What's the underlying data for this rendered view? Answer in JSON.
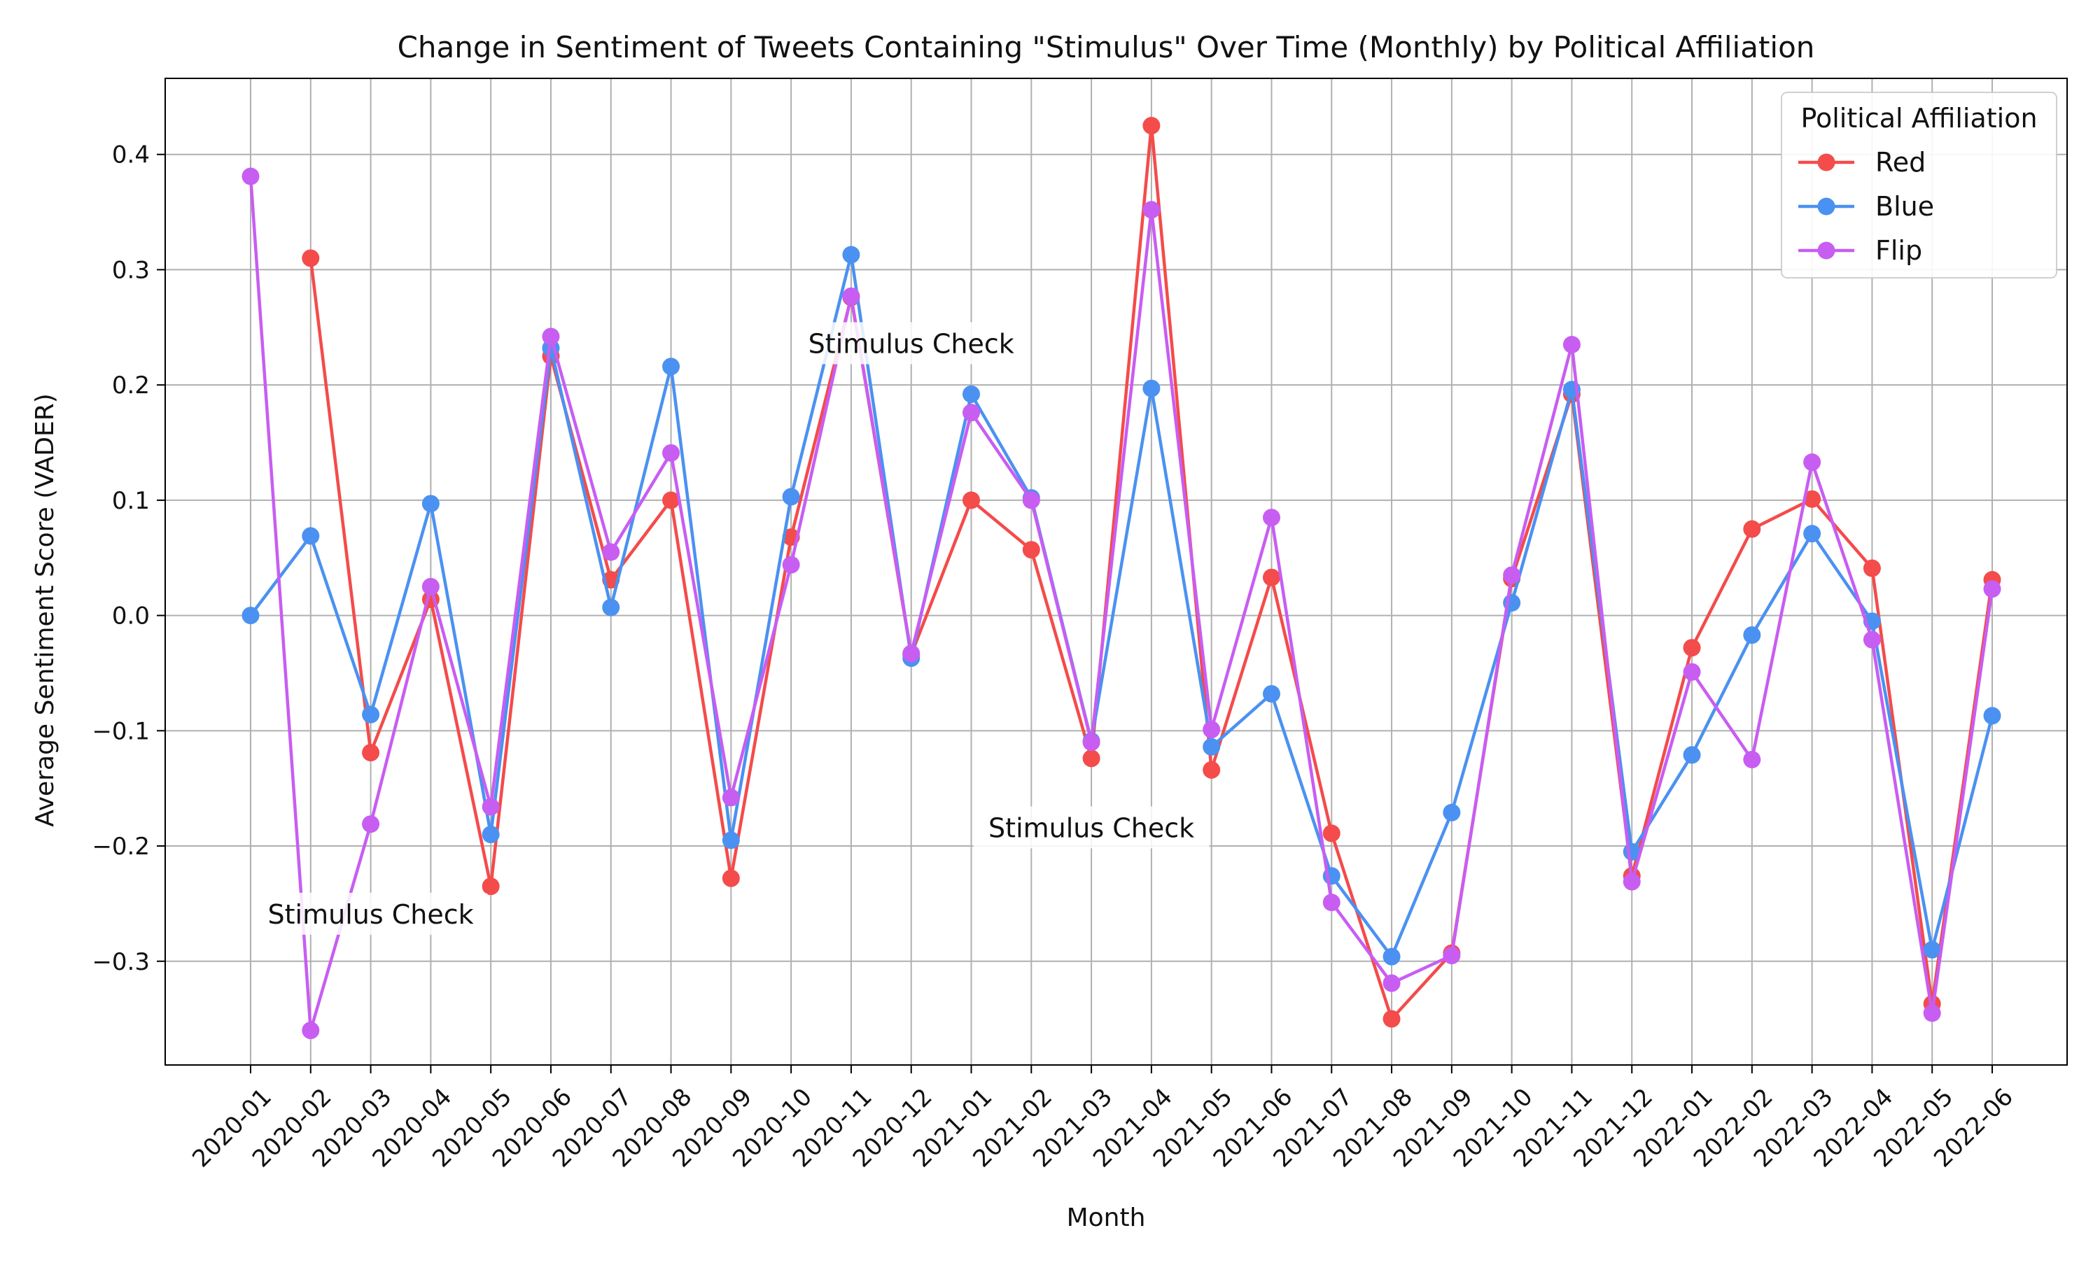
{
  "chart_data": {
    "type": "line",
    "title": "Change in Sentiment of Tweets Containing \"Stimulus\" Over Time (Monthly) by Political Affiliation",
    "xlabel": "Month",
    "ylabel": "Average Sentiment Score (VADER)",
    "x": [
      "2020-01",
      "2020-02",
      "2020-03",
      "2020-04",
      "2020-05",
      "2020-06",
      "2020-07",
      "2020-08",
      "2020-09",
      "2020-10",
      "2020-11",
      "2020-12",
      "2021-01",
      "2021-02",
      "2021-03",
      "2021-04",
      "2021-05",
      "2021-06",
      "2021-07",
      "2021-08",
      "2021-09",
      "2021-10",
      "2021-11",
      "2021-12",
      "2022-01",
      "2022-02",
      "2022-03",
      "2022-04",
      "2022-05",
      "2022-06"
    ],
    "ylim": [
      -0.39,
      0.466
    ],
    "yticks": [
      -0.3,
      -0.2,
      -0.1,
      0.0,
      0.1,
      0.2,
      0.3,
      0.4
    ],
    "ytick_labels": [
      "−0.3",
      "−0.2",
      "−0.1",
      "0.0",
      "0.1",
      "0.2",
      "0.3",
      "0.4"
    ],
    "grid": true,
    "legend": {
      "title": "Political Affiliation",
      "placement": "top-right"
    },
    "series": [
      {
        "name": "Red",
        "color": "#f44b4b",
        "values": [
          null,
          0.31,
          -0.119,
          0.014,
          -0.235,
          0.225,
          0.031,
          0.1,
          -0.228,
          0.068,
          0.276,
          -0.034,
          0.1,
          0.057,
          -0.124,
          0.425,
          -0.134,
          0.033,
          -0.189,
          -0.35,
          -0.293,
          0.032,
          0.192,
          -0.226,
          -0.028,
          0.075,
          0.101,
          0.041,
          -0.337,
          0.031
        ]
      },
      {
        "name": "Blue",
        "color": "#4b91f1",
        "values": [
          0.0,
          0.069,
          -0.086,
          0.097,
          -0.19,
          0.232,
          0.007,
          0.216,
          -0.195,
          0.103,
          0.313,
          -0.037,
          0.192,
          0.102,
          -0.109,
          0.197,
          -0.114,
          -0.068,
          -0.226,
          -0.296,
          -0.171,
          0.011,
          0.196,
          -0.205,
          -0.121,
          -0.017,
          0.071,
          -0.005,
          -0.29,
          -0.087
        ]
      },
      {
        "name": "Flip",
        "color": "#c85df2",
        "values": [
          0.381,
          -0.36,
          -0.181,
          0.025,
          -0.166,
          0.242,
          0.055,
          0.141,
          -0.158,
          0.044,
          0.277,
          -0.033,
          0.176,
          0.1,
          -0.11,
          0.352,
          -0.099,
          0.085,
          -0.249,
          -0.319,
          -0.295,
          0.035,
          0.235,
          -0.231,
          -0.049,
          -0.125,
          0.133,
          -0.021,
          -0.345,
          0.023
        ]
      }
    ],
    "annotations": [
      {
        "text": "Stimulus Check",
        "x": "2020-03",
        "y": -0.26
      },
      {
        "text": "Stimulus Check",
        "x": "2020-12",
        "y": 0.235
      },
      {
        "text": "Stimulus Check",
        "x": "2021-03",
        "y": -0.185
      }
    ]
  }
}
